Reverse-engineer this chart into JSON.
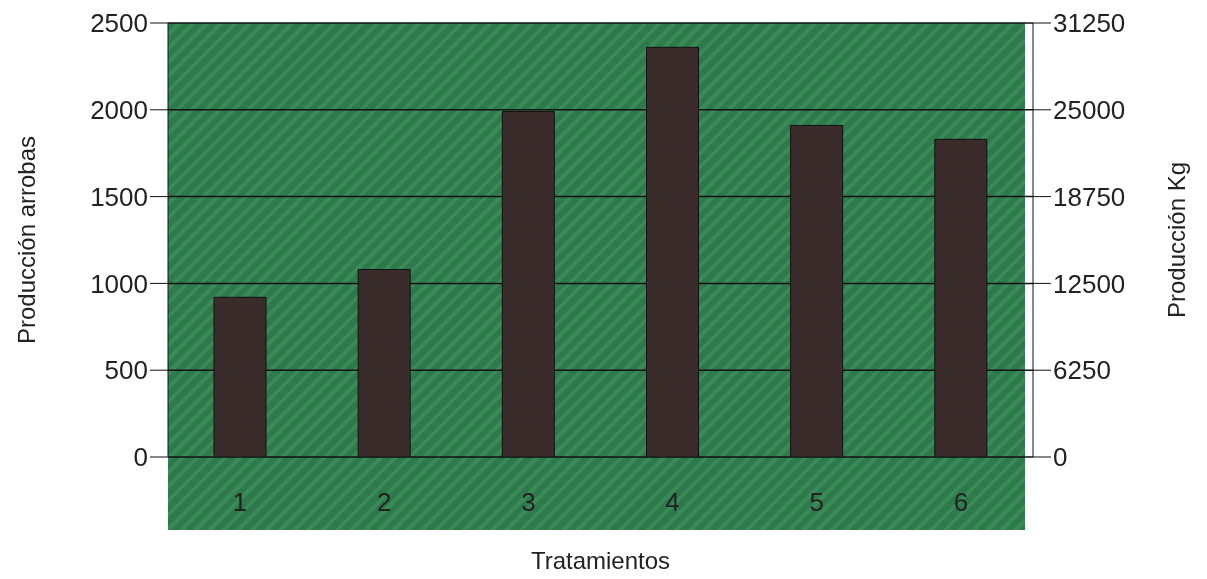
{
  "chart_data": {
    "type": "bar",
    "xlabel": "Tratamientos",
    "ylabel": "Producción arrobas",
    "y2label": "Producción Kg",
    "categories": [
      "1",
      "2",
      "3",
      "4",
      "5",
      "6"
    ],
    "series": [
      {
        "color": "#3b2c2c",
        "values": [
          920,
          1080,
          1990,
          2360,
          1910,
          1830
        ]
      }
    ],
    "ylim": [
      0,
      2500
    ],
    "yticks": [
      0,
      500,
      1000,
      1500,
      2000,
      2500
    ],
    "y2lim": [
      0,
      31250
    ],
    "y2ticks": [
      0,
      6250,
      12500,
      18750,
      25000,
      31250
    ],
    "grid": "y",
    "legend": false
  }
}
